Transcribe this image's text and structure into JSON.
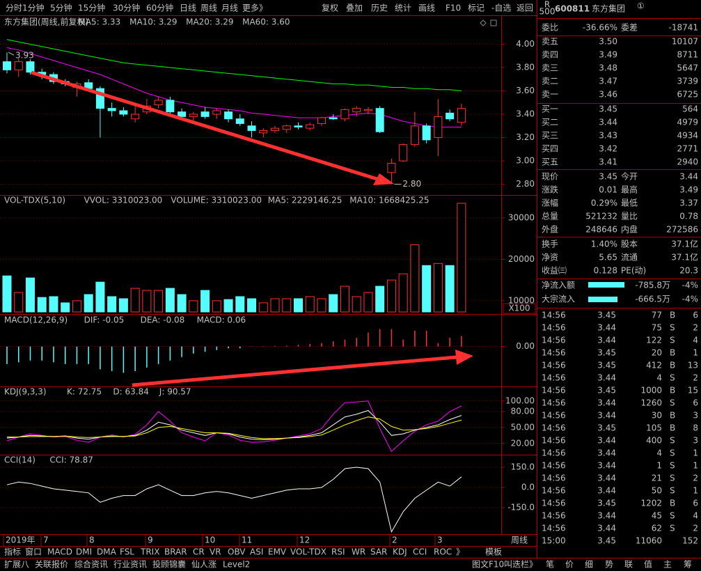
{
  "toolbar": {
    "periods": [
      "分时",
      "1分钟",
      "5分钟",
      "15分钟",
      "30分钟",
      "60分钟",
      "日线",
      "周线",
      "月线",
      "更多》"
    ],
    "actions": [
      "复权",
      "叠加",
      "历史",
      "统计",
      "画线",
      "F10",
      "标记",
      "-自选",
      "返回"
    ]
  },
  "main": {
    "title": "东方集团(周线,前复权)",
    "indicators": [
      {
        "label": "MA5: 3.33",
        "color": "#ffffff"
      },
      {
        "label": "MA10: 3.29",
        "color": "#ffff00"
      },
      {
        "label": "MA20: 3.29",
        "color": "#ff00ff"
      },
      {
        "label": "MA60: 3.60",
        "color": "#00ff00"
      }
    ],
    "ylim": [
      2.72,
      4.14
    ],
    "yticks": [
      {
        "value": 4,
        "label": "4.00"
      },
      {
        "value": 3.8,
        "label": "3.80"
      },
      {
        "value": 3.6,
        "label": "3.60"
      },
      {
        "value": 3.4,
        "label": "3.40"
      },
      {
        "value": 3.2,
        "label": "3.20"
      },
      {
        "value": 3,
        "label": "3.00"
      },
      {
        "value": 2.8,
        "label": "2.80"
      }
    ],
    "candles": [
      [
        3.85,
        3.93,
        3.75,
        3.78
      ],
      [
        3.78,
        3.88,
        3.72,
        3.85
      ],
      [
        3.85,
        3.87,
        3.74,
        3.76
      ],
      [
        3.76,
        3.79,
        3.7,
        3.74
      ],
      [
        3.74,
        3.76,
        3.66,
        3.68
      ],
      [
        3.68,
        3.7,
        3.64,
        3.66
      ],
      [
        3.63,
        3.68,
        3.55,
        3.66
      ],
      [
        3.67,
        3.7,
        3.6,
        3.62
      ],
      [
        3.62,
        3.64,
        3.2,
        3.45
      ],
      [
        3.45,
        3.5,
        3.38,
        3.43
      ],
      [
        3.43,
        3.46,
        3.38,
        3.4
      ],
      [
        3.36,
        3.48,
        3.33,
        3.4
      ],
      [
        3.42,
        3.53,
        3.4,
        3.47
      ],
      [
        3.48,
        3.55,
        3.45,
        3.52
      ],
      [
        3.52,
        3.55,
        3.4,
        3.42
      ],
      [
        3.42,
        3.45,
        3.35,
        3.38
      ],
      [
        3.38,
        3.42,
        3.34,
        3.4
      ],
      [
        3.42,
        3.46,
        3.36,
        3.38
      ],
      [
        3.4,
        3.45,
        3.36,
        3.43
      ],
      [
        3.42,
        3.44,
        3.33,
        3.36
      ],
      [
        3.36,
        3.4,
        3.3,
        3.32
      ],
      [
        3.3,
        3.34,
        3.2,
        3.26
      ],
      [
        3.24,
        3.28,
        3.2,
        3.26
      ],
      [
        3.26,
        3.3,
        3.24,
        3.28
      ],
      [
        3.27,
        3.31,
        3.24,
        3.3
      ],
      [
        3.3,
        3.33,
        3.27,
        3.29
      ],
      [
        3.28,
        3.33,
        3.26,
        3.31
      ],
      [
        3.32,
        3.38,
        3.3,
        3.37
      ],
      [
        3.37,
        3.4,
        3.35,
        3.36
      ],
      [
        3.36,
        3.45,
        3.34,
        3.44
      ],
      [
        3.42,
        3.47,
        3.38,
        3.45
      ],
      [
        3.43,
        3.46,
        3.4,
        3.44
      ],
      [
        3.45,
        3.47,
        3.24,
        3.25
      ],
      [
        2.9,
        3.02,
        2.8,
        2.98
      ],
      [
        3.0,
        3.15,
        2.99,
        3.14
      ],
      [
        3.14,
        3.42,
        3.12,
        3.3
      ],
      [
        3.3,
        3.32,
        3.15,
        3.18
      ],
      [
        3.2,
        3.53,
        3.04,
        3.38
      ],
      [
        3.41,
        3.44,
        3.34,
        3.36
      ],
      [
        3.33,
        3.49,
        3.3,
        3.45
      ]
    ],
    "ma": [
      {
        "color": "#00ff00",
        "values": [
          4.04,
          4.02,
          4.0,
          3.98,
          3.96,
          3.94,
          3.92,
          3.9,
          3.88,
          3.86,
          3.84,
          3.83,
          3.82,
          3.81,
          3.8,
          3.79,
          3.78,
          3.77,
          3.76,
          3.75,
          3.74,
          3.73,
          3.72,
          3.71,
          3.7,
          3.69,
          3.68,
          3.67,
          3.66,
          3.66,
          3.65,
          3.65,
          3.64,
          3.63,
          3.63,
          3.62,
          3.62,
          3.61,
          3.61,
          3.6
        ]
      },
      {
        "color": "#ff00ff",
        "values": [
          3.97,
          3.95,
          3.92,
          3.89,
          3.86,
          3.83,
          3.8,
          3.77,
          3.74,
          3.7,
          3.66,
          3.62,
          3.58,
          3.55,
          3.52,
          3.5,
          3.48,
          3.46,
          3.45,
          3.44,
          3.43,
          3.41,
          3.4,
          3.39,
          3.38,
          3.37,
          3.37,
          3.37,
          3.38,
          3.39,
          3.4,
          3.41,
          3.4,
          3.37,
          3.34,
          3.32,
          3.3,
          3.29,
          3.29,
          3.29
        ]
      }
    ],
    "high": 3.93,
    "low": {
      "value": 2.8,
      "label": "2.80"
    }
  },
  "vol": {
    "title": "VOL-TDX(5,10)",
    "indicators": [
      {
        "label": "VVOL: 3310023.00",
        "color": "#ffffff"
      },
      {
        "label": "VOLUME: 3310023.00",
        "color": "#ffff00"
      },
      {
        "label": "MA5: 2229146.25",
        "color": "#ffff00"
      },
      {
        "label": "MA10: 1668425.25",
        "color": "#ff00ff"
      }
    ],
    "unit": "X100",
    "ylim": [
      7300,
      35000
    ],
    "yticks": [
      30000,
      20000,
      10000
    ],
    "values": [
      16000,
      12000,
      15500,
      10800,
      11000,
      9500,
      10000,
      11500,
      14500,
      11000,
      10500,
      13000,
      12500,
      12500,
      13000,
      11500,
      10000,
      12500,
      10000,
      10300,
      11000,
      10500,
      9500,
      10500,
      10500,
      10500,
      11000,
      10500,
      11500,
      13500,
      11000,
      12000,
      13500,
      15000,
      16500,
      23500,
      18500,
      19000,
      18500,
      33500
    ]
  },
  "macd": {
    "title": "MACD(12,26,9)",
    "indicators": [
      {
        "label": "DIF: -0.05",
        "color": "#ffffff"
      },
      {
        "label": "DEA: -0.08",
        "color": "#ffff00"
      },
      {
        "label": "MACD: 0.06",
        "color": "#ff00ff"
      }
    ],
    "ylim": [
      -0.22,
      0.13
    ],
    "yticks": [
      {
        "value": 0,
        "label": "0.00"
      }
    ],
    "values": [
      -0.1,
      -0.09,
      -0.08,
      -0.08,
      -0.09,
      -0.1,
      -0.1,
      -0.1,
      -0.13,
      -0.14,
      -0.15,
      -0.14,
      -0.12,
      -0.1,
      -0.08,
      -0.06,
      -0.04,
      -0.03,
      -0.02,
      -0.01,
      -0.01,
      0.002,
      0.003,
      0.004,
      0.005,
      0.01,
      0.015,
      0.02,
      0.03,
      0.04,
      0.05,
      0.08,
      0.1,
      0.1,
      0.04,
      0.09,
      0.09,
      0.02,
      0.05,
      0.06
    ]
  },
  "kdj": {
    "title": "KDJ(9,3,3)",
    "indicators": [
      {
        "label": "K: 72.75",
        "color": "#ffffff"
      },
      {
        "label": "D: 63.84",
        "color": "#ffff00"
      },
      {
        "label": "J: 90.57",
        "color": "#ff00ff"
      }
    ],
    "ylim": [
      0,
      105
    ],
    "yticks": [
      {
        "value": 100,
        "label": "100.00"
      },
      {
        "value": 80,
        "label": "80.00"
      },
      {
        "value": 50,
        "label": "50.00"
      },
      {
        "value": 20,
        "label": "20.00"
      }
    ],
    "lines": [
      {
        "color": "#ff00ff",
        "values": [
          25,
          32,
          38,
          35,
          32,
          33,
          26,
          22,
          32,
          36,
          32,
          37,
          55,
          80,
          62,
          40,
          32,
          25,
          40,
          36,
          26,
          22,
          23,
          26,
          30,
          34,
          38,
          48,
          75,
          97,
          98,
          100,
          48,
          5,
          25,
          43,
          55,
          62,
          80,
          90.57
        ]
      },
      {
        "color": "#ffffff",
        "values": [
          30,
          32,
          35,
          34,
          33,
          34,
          30,
          28,
          32,
          34,
          33,
          35,
          45,
          60,
          55,
          45,
          40,
          35,
          40,
          38,
          32,
          28,
          27,
          28,
          30,
          32,
          35,
          40,
          55,
          70,
          75,
          82,
          60,
          35,
          38,
          45,
          50,
          55,
          65,
          72.75
        ]
      },
      {
        "color": "#ffff00",
        "values": [
          32,
          32,
          33,
          33,
          33,
          34,
          32,
          31,
          32,
          33,
          33,
          34,
          40,
          50,
          52,
          48,
          44,
          40,
          40,
          39,
          35,
          31,
          29,
          29,
          30,
          31,
          33,
          36,
          45,
          55,
          63,
          70,
          66,
          52,
          45,
          46,
          48,
          52,
          58,
          63.84
        ]
      }
    ]
  },
  "cci": {
    "title": "CCI(14)",
    "indicators": [
      {
        "label": "CCI: 78.87",
        "color": "#ffffff"
      }
    ],
    "ylim": [
      -336,
      233
    ],
    "yticks": [
      {
        "value": 150,
        "label": "150.0"
      },
      {
        "value": 0,
        "label": "0.0"
      },
      {
        "value": -150,
        "label": "-150.0"
      }
    ],
    "lines": [
      {
        "color": "#ffffff",
        "values": [
          20,
          40,
          30,
          10,
          -10,
          -20,
          -30,
          -40,
          -110,
          -80,
          -60,
          -60,
          -10,
          20,
          -20,
          -60,
          -60,
          -40,
          -30,
          -40,
          -60,
          -80,
          -60,
          -40,
          -20,
          -10,
          -10,
          0,
          60,
          140,
          150,
          140,
          40,
          -330,
          -180,
          -80,
          -20,
          40,
          10,
          78.87
        ]
      }
    ]
  },
  "time_axis": {
    "labels": [
      "2019年",
      "7",
      "8",
      "9",
      "10",
      "11",
      "12",
      "2",
      "3"
    ],
    "period": "周线"
  },
  "tabs": {
    "indicators": [
      "指标",
      "窗口",
      "MACD",
      "DMI",
      "DMA",
      "FSL",
      "TRIX",
      "BRAR",
      "CR",
      "VR",
      "OBV",
      "ASI",
      "EMV",
      "VOL-TDX",
      "RSI",
      "WR",
      "SAR",
      "KDJ",
      "CCI",
      "ROC",
      "》"
    ],
    "template": "模板",
    "bottom": [
      "扩展八",
      "关联报价",
      "综合资讯",
      "行业资讯",
      "投顾锦囊",
      "仙人涨",
      "Level2"
    ],
    "bottom_right": [
      "图文F10",
      "叫迭栏》"
    ]
  },
  "quote": {
    "tag": [
      "R",
      "500"
    ],
    "code": "600811",
    "name": "东方集团",
    "badge": "①",
    "ratio": [
      "委比",
      "-36.66%",
      "委差",
      "-18741"
    ],
    "asks": [
      [
        "卖五",
        "3.50",
        "10107"
      ],
      [
        "卖四",
        "3.49",
        "8711"
      ],
      [
        "卖三",
        "3.48",
        "5647"
      ],
      [
        "卖二",
        "3.47",
        "3739"
      ],
      [
        "卖一",
        "3.46",
        "6725"
      ]
    ],
    "bids": [
      [
        "买一",
        "3.45",
        "564"
      ],
      [
        "买二",
        "3.44",
        "4979"
      ],
      [
        "买三",
        "3.43",
        "4934"
      ],
      [
        "买四",
        "3.42",
        "2771"
      ],
      [
        "买五",
        "3.41",
        "2940"
      ]
    ],
    "stats": [
      [
        "现价",
        "3.45",
        "今开",
        "3.44"
      ],
      [
        "涨跌",
        "0.01",
        "最高",
        "3.49"
      ],
      [
        "涨幅",
        "0.29%",
        "最低",
        "3.37"
      ],
      [
        "总量",
        "521232",
        "量比",
        "0.78"
      ],
      [
        "外盘",
        "248646",
        "内盘",
        "272586"
      ]
    ],
    "fundamentals": [
      [
        "换手",
        "1.40%",
        "股本",
        "37.1亿"
      ],
      [
        "净资",
        "5.65",
        "流通",
        "37.1亿"
      ],
      [
        "收益㈢",
        "0.128",
        "PE(动)",
        "20.3"
      ]
    ],
    "flows": [
      [
        "净流入额",
        "-785.8万",
        "-4%"
      ],
      [
        "大宗流入",
        "-666.5万",
        "-4%"
      ]
    ],
    "trades": [
      [
        "14:56",
        "3.45",
        "77",
        "B",
        "6"
      ],
      [
        "14:56",
        "3.44",
        "75",
        "S",
        "2"
      ],
      [
        "14:56",
        "3.44",
        "122",
        "S",
        "4"
      ],
      [
        "14:56",
        "3.45",
        "20",
        "B",
        "1"
      ],
      [
        "14:56",
        "3.45",
        "412",
        "B",
        "13"
      ],
      [
        "14:56",
        "3.44",
        "4",
        "S",
        "2"
      ],
      [
        "14:56",
        "3.45",
        "1000",
        "B",
        "15"
      ],
      [
        "14:56",
        "3.44",
        "1260",
        "S",
        "6"
      ],
      [
        "14:56",
        "3.44",
        "30",
        "B",
        "3"
      ],
      [
        "14:56",
        "3.45",
        "105",
        "B",
        "8"
      ],
      [
        "14:56",
        "3.44",
        "400",
        "S",
        "3"
      ],
      [
        "14:56",
        "3.44",
        "4",
        "S",
        "1"
      ],
      [
        "14:56",
        "3.44",
        "1",
        "S",
        "1"
      ],
      [
        "14:56",
        "3.44",
        "21",
        "S",
        "2"
      ],
      [
        "14:56",
        "3.44",
        "50",
        "S",
        "1"
      ],
      [
        "14:56",
        "3.45",
        "1202",
        "B",
        "6"
      ],
      [
        "14:56",
        "3.44",
        "45",
        "S",
        "4"
      ],
      [
        "14:56",
        "3.44",
        "62",
        "S",
        "2"
      ],
      [
        "15:00",
        "3.45",
        "11060",
        "152"
      ]
    ],
    "tabs": [
      "笔",
      "价",
      "细",
      "势",
      "联",
      "值",
      "主",
      "筹"
    ]
  }
}
